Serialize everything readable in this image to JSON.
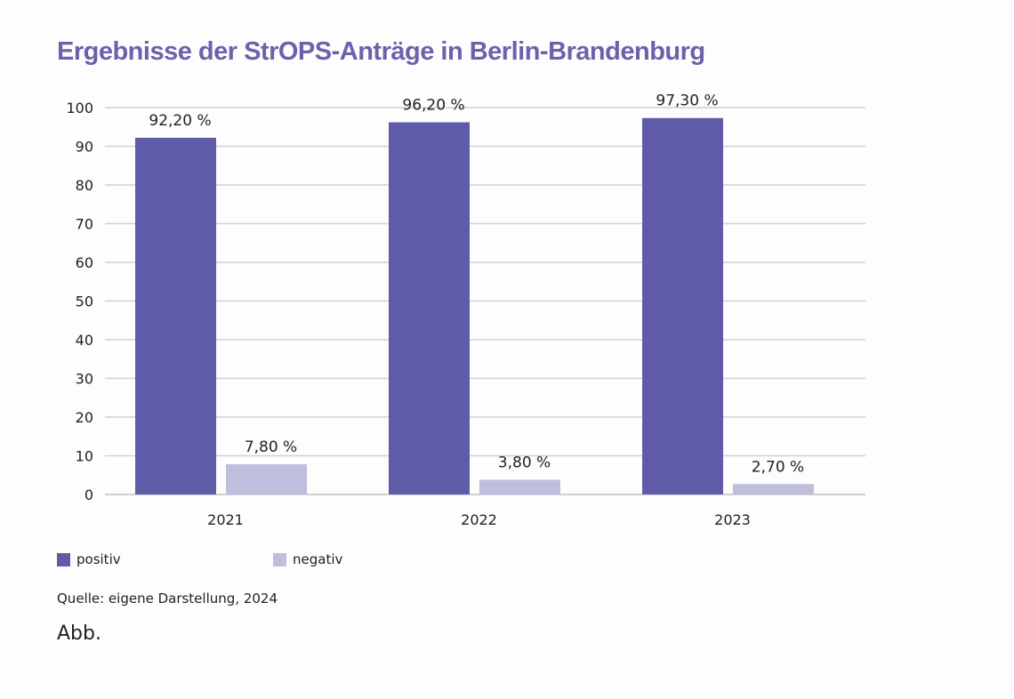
{
  "chart_data": {
    "type": "bar",
    "title": "Ergebnisse der StrOPS-Anträge in Berlin-Brandenburg",
    "categories": [
      "2021",
      "2022",
      "2023"
    ],
    "series": [
      {
        "name": "positiv",
        "values": [
          92.2,
          96.2,
          97.3
        ],
        "labels": [
          "92,20 %",
          "96,20 %",
          "97,30 %"
        ],
        "color": "#5f5ba8"
      },
      {
        "name": "negativ",
        "values": [
          7.8,
          3.8,
          2.7
        ],
        "labels": [
          "7,80 %",
          "3,80 %",
          "2,70 %"
        ],
        "color": "#c0bedd"
      }
    ],
    "yticks": [
      "0",
      "10",
      "20",
      "30",
      "40",
      "50",
      "60",
      "70",
      "80",
      "90",
      "100"
    ],
    "ylim": [
      0,
      100
    ],
    "grid": true,
    "legend": "bottom-left",
    "xlabel": "",
    "ylabel": ""
  },
  "source": "Quelle:  eigene Darstellung, 2024",
  "caption": "Abb."
}
